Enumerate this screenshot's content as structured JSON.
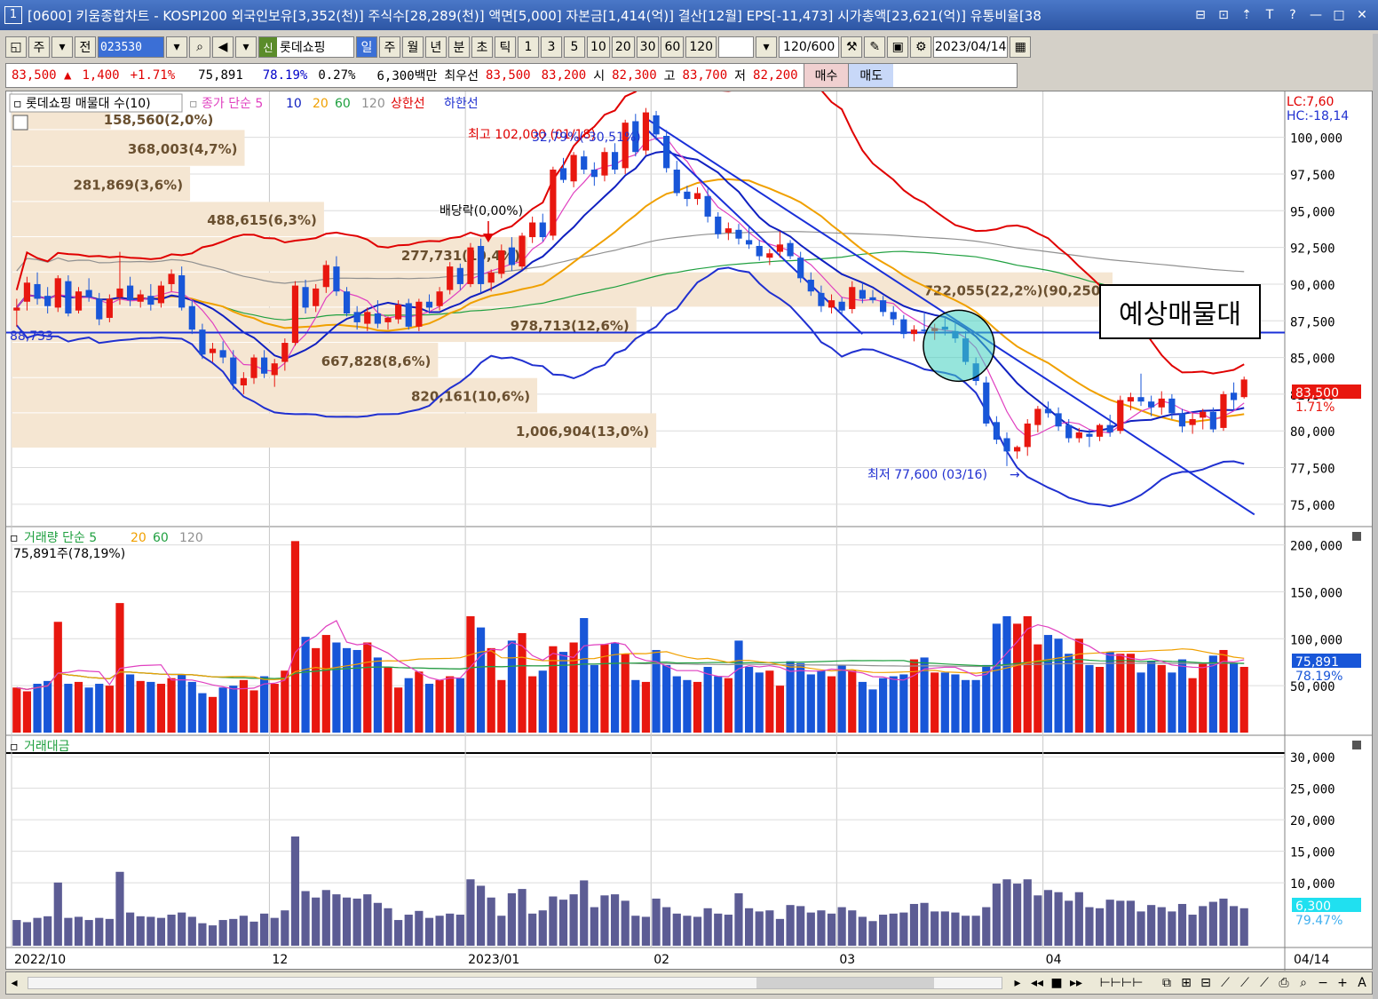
{
  "titlebar": {
    "window_number": "1",
    "title": "[0600] 키움종합차트 - KOSPI200 외국인보유[3,352(천)] 주식수[28,289(천)] 액면[5,000] 자본금[1,414(억)] 결산[12월] EPS[-11,473] 시가총액[23,621(억)] 유통비율[38",
    "buttons": [
      "⊟",
      "⊡",
      "⇡",
      "T",
      "?",
      "—",
      "□",
      "✕"
    ]
  },
  "toolbar": {
    "mode_label": "주",
    "prev_label": "전",
    "code": "023530",
    "stock_tag": "신",
    "stock_name": "롯데쇼핑",
    "periods": [
      "일",
      "주",
      "월",
      "년",
      "분",
      "초",
      "틱"
    ],
    "active_period": "일",
    "intervals": [
      "1",
      "3",
      "5",
      "10",
      "20",
      "30",
      "60",
      "120"
    ],
    "count": "120",
    "total": "/600",
    "date": "2023/04/14"
  },
  "quote": {
    "price": "83,500 ▲",
    "change": "1,400",
    "rate": "+1.71%",
    "volume": "75,891",
    "vol_ratio": "78.19%",
    "turnover": "0.27%",
    "amount": "6,300백만",
    "best_label": "최우선",
    "best_ask": "83,500",
    "best_bid": "83,200",
    "open_label": "시",
    "open": "82,300",
    "high_label": "고",
    "high": "83,700",
    "low_label": "저",
    "low": "82,200",
    "buy": "매수",
    "sell": "매도"
  },
  "price_panel": {
    "legend": {
      "name": "롯데쇼핑 매물대 수(10)",
      "ma_label": "종가 단순 5",
      "ma": [
        "10",
        "20",
        "60",
        "120"
      ],
      "upper": "상한선",
      "lower": "하한선"
    },
    "lc": "LC:7,60",
    "hc": "HC:-18,14",
    "current_price": "83,500",
    "current_rate": "1.71%",
    "high_note": "최고 102,000 (01/18)",
    "low_note": "최저 77,600 (03/16)",
    "dividend_note": "배당락(0,00%)",
    "trend_note": "32,79%(-30,51%)",
    "left_marker": "88,733",
    "annotation": "예상매물대",
    "ticks": [
      {
        "v": 100000,
        "label": "100,000"
      },
      {
        "v": 97500,
        "label": "97,500"
      },
      {
        "v": 95000,
        "label": "95,000"
      },
      {
        "v": 92500,
        "label": "92,500"
      },
      {
        "v": 90000,
        "label": "90,000"
      },
      {
        "v": 87500,
        "label": "87,500"
      },
      {
        "v": 85000,
        "label": "85,000"
      },
      {
        "v": 82500,
        "label": "82,500"
      },
      {
        "v": 80000,
        "label": "80,000"
      },
      {
        "v": 77500,
        "label": "77,500"
      },
      {
        "v": 75000,
        "label": "75,000"
      }
    ],
    "volume_profile": [
      {
        "label": "158,560(2,0%)",
        "pct": 2.0,
        "lo": 100500,
        "hi": 102000
      },
      {
        "label": "368,003(4,7%)",
        "pct": 4.7,
        "lo": 98000,
        "hi": 100500
      },
      {
        "label": "281,869(3,6%)",
        "pct": 3.6,
        "lo": 95600,
        "hi": 98000
      },
      {
        "label": "488,615(6,3%)",
        "pct": 6.3,
        "lo": 93200,
        "hi": 95600
      },
      {
        "label": "277,731(10,4%)",
        "pct": 10.4,
        "lo": 90800,
        "hi": 93200
      },
      {
        "label": "722,055(22,2%)(90,250,",
        "pct": 22.2,
        "lo": 88400,
        "hi": 90800
      },
      {
        "label": "978,713(12,6%)",
        "pct": 12.6,
        "lo": 86000,
        "hi": 88400
      },
      {
        "label": "667,828(8,6%)",
        "pct": 8.6,
        "lo": 83600,
        "hi": 86000
      },
      {
        "label": "820,161(10,6%)",
        "pct": 10.6,
        "lo": 81200,
        "hi": 83600
      },
      {
        "label": "1,006,904(13,0%)",
        "pct": 13.0,
        "lo": 78800,
        "hi": 81200
      }
    ]
  },
  "volume_panel": {
    "legend": "거래량 단순 5",
    "ma": [
      "20",
      "60",
      "120"
    ],
    "current_label": "75,891주(78,19%)",
    "current": "75,891",
    "current_rate": "78.19%",
    "ticks": [
      {
        "v": 200000,
        "label": "200,000"
      },
      {
        "v": 150000,
        "label": "150,000"
      },
      {
        "v": 100000,
        "label": "100,000"
      },
      {
        "v": 50000,
        "label": "50,000"
      }
    ]
  },
  "amount_panel": {
    "legend": "거래대금",
    "current": "6,300",
    "current_rate": "79.47%",
    "ticks": [
      {
        "v": 30000,
        "label": "30,000"
      },
      {
        "v": 25000,
        "label": "25,000"
      },
      {
        "v": 20000,
        "label": "20,000"
      },
      {
        "v": 15000,
        "label": "15,000"
      },
      {
        "v": 10000,
        "label": "10,000"
      }
    ]
  },
  "x_axis": {
    "labels": [
      {
        "i": 0,
        "t": "2022/10"
      },
      {
        "i": 25,
        "t": "12"
      },
      {
        "i": 44,
        "t": "2023/01"
      },
      {
        "i": 62,
        "t": "02"
      },
      {
        "i": 80,
        "t": "03"
      },
      {
        "i": 100,
        "t": "04"
      }
    ],
    "end_label": "04/14"
  },
  "colors": {
    "up": "#e8170f",
    "down": "#1856d8",
    "ma5": "#e040c0",
    "ma10": "#1020c0",
    "ma20": "#f0a000",
    "ma60": "#20a040",
    "ma120": "#909090",
    "upper": "#e00000",
    "lower": "#2030d0",
    "profile": "#f5e6d2",
    "amount": "#5c5c94",
    "support": "#1a30d8",
    "circle": "#40d0c0"
  },
  "chart_data": {
    "type": "candlestick",
    "ohlc": [
      [
        88.2,
        89.0,
        87.1,
        88.4
      ],
      [
        88.8,
        90.5,
        88.2,
        90.1
      ],
      [
        90.0,
        90.8,
        88.6,
        89.0
      ],
      [
        89.2,
        89.8,
        88.0,
        88.5
      ],
      [
        88.4,
        90.6,
        88.1,
        90.4
      ],
      [
        90.2,
        90.6,
        87.8,
        88.0
      ],
      [
        88.2,
        89.8,
        88.0,
        89.5
      ],
      [
        89.6,
        90.4,
        88.8,
        89.1
      ],
      [
        89.0,
        89.4,
        87.2,
        87.6
      ],
      [
        87.7,
        89.3,
        87.4,
        89.0
      ],
      [
        89.1,
        92.2,
        88.6,
        89.7
      ],
      [
        89.9,
        90.5,
        88.5,
        88.9
      ],
      [
        88.8,
        89.6,
        88.4,
        89.3
      ],
      [
        89.2,
        90.0,
        88.2,
        88.6
      ],
      [
        88.7,
        90.2,
        88.4,
        89.9
      ],
      [
        90.0,
        91.0,
        89.5,
        90.7
      ],
      [
        90.6,
        91.2,
        88.2,
        88.4
      ],
      [
        88.5,
        88.9,
        86.6,
        86.9
      ],
      [
        86.9,
        87.3,
        84.9,
        85.2
      ],
      [
        85.3,
        86.0,
        84.7,
        85.6
      ],
      [
        85.5,
        86.1,
        84.6,
        85.0
      ],
      [
        85.0,
        85.5,
        82.8,
        83.2
      ],
      [
        83.1,
        84.0,
        82.5,
        83.6
      ],
      [
        83.6,
        85.2,
        83.2,
        85.0
      ],
      [
        85.0,
        85.5,
        83.6,
        83.9
      ],
      [
        83.8,
        84.9,
        83.0,
        84.6
      ],
      [
        84.7,
        86.3,
        84.1,
        86.0
      ],
      [
        86.0,
        90.2,
        85.8,
        89.9
      ],
      [
        89.8,
        90.3,
        88.0,
        88.4
      ],
      [
        88.5,
        90.0,
        88.1,
        89.7
      ],
      [
        89.8,
        91.6,
        89.4,
        91.3
      ],
      [
        91.2,
        91.9,
        89.2,
        89.5
      ],
      [
        89.5,
        89.8,
        87.8,
        88.0
      ],
      [
        88.1,
        88.5,
        86.9,
        87.4
      ],
      [
        87.3,
        88.4,
        86.8,
        88.1
      ],
      [
        88.0,
        88.9,
        87.0,
        87.3
      ],
      [
        87.4,
        87.8,
        86.9,
        87.7
      ],
      [
        87.6,
        88.9,
        87.3,
        88.6
      ],
      [
        88.7,
        89.0,
        86.9,
        87.1
      ],
      [
        87.1,
        89.0,
        86.8,
        88.8
      ],
      [
        88.8,
        89.3,
        88.0,
        88.4
      ],
      [
        88.5,
        89.8,
        88.2,
        89.5
      ],
      [
        89.6,
        91.5,
        89.3,
        91.2
      ],
      [
        91.1,
        91.4,
        89.6,
        90.0
      ],
      [
        90.0,
        92.8,
        89.8,
        92.5
      ],
      [
        92.6,
        93.1,
        89.4,
        90.0
      ],
      [
        90.1,
        91.0,
        89.5,
        90.8
      ],
      [
        90.7,
        92.7,
        90.4,
        92.3
      ],
      [
        92.5,
        93.2,
        90.9,
        91.3
      ],
      [
        91.2,
        93.5,
        91.0,
        93.3
      ],
      [
        93.2,
        94.6,
        92.8,
        94.2
      ],
      [
        94.2,
        94.8,
        92.9,
        93.2
      ],
      [
        93.3,
        98.0,
        93.0,
        97.8
      ],
      [
        97.9,
        98.6,
        96.9,
        97.1
      ],
      [
        97.0,
        99.0,
        96.6,
        98.8
      ],
      [
        98.7,
        99.1,
        97.5,
        97.8
      ],
      [
        97.8,
        98.3,
        96.7,
        97.3
      ],
      [
        97.4,
        99.3,
        97.0,
        99.0
      ],
      [
        99.0,
        99.6,
        97.5,
        97.8
      ],
      [
        97.9,
        101.2,
        97.5,
        101.0
      ],
      [
        101.1,
        101.6,
        98.7,
        99.0
      ],
      [
        99.1,
        102.0,
        98.8,
        101.7
      ],
      [
        101.5,
        101.8,
        99.8,
        100.2
      ],
      [
        100.1,
        100.5,
        97.6,
        97.9
      ],
      [
        97.8,
        98.4,
        96.0,
        96.2
      ],
      [
        96.3,
        96.7,
        95.3,
        95.8
      ],
      [
        95.8,
        96.6,
        95.4,
        96.2
      ],
      [
        96.0,
        96.5,
        94.2,
        94.6
      ],
      [
        94.6,
        94.9,
        93.1,
        93.4
      ],
      [
        93.5,
        94.2,
        93.0,
        93.8
      ],
      [
        93.7,
        94.1,
        92.7,
        93.1
      ],
      [
        93.0,
        93.9,
        92.4,
        92.7
      ],
      [
        92.6,
        93.0,
        91.6,
        91.9
      ],
      [
        91.8,
        92.4,
        91.3,
        92.1
      ],
      [
        92.2,
        93.6,
        91.8,
        92.7
      ],
      [
        92.8,
        93.0,
        91.7,
        91.9
      ],
      [
        91.8,
        92.2,
        90.1,
        90.4
      ],
      [
        90.3,
        90.8,
        89.2,
        89.5
      ],
      [
        89.4,
        89.9,
        88.1,
        88.5
      ],
      [
        88.4,
        89.3,
        88.0,
        88.9
      ],
      [
        88.8,
        89.1,
        87.9,
        88.2
      ],
      [
        88.3,
        90.2,
        88.0,
        89.8
      ],
      [
        89.6,
        90.1,
        88.7,
        89.0
      ],
      [
        89.1,
        89.6,
        88.7,
        88.9
      ],
      [
        88.9,
        89.2,
        87.8,
        88.1
      ],
      [
        88.1,
        88.5,
        87.2,
        87.6
      ],
      [
        87.6,
        87.9,
        86.3,
        86.6
      ],
      [
        86.6,
        87.2,
        86.1,
        86.9
      ],
      [
        86.9,
        88.0,
        86.6,
        86.8
      ],
      [
        86.8,
        87.3,
        86.2,
        87.0
      ],
      [
        87.1,
        87.8,
        86.5,
        86.9
      ],
      [
        86.8,
        87.5,
        86.0,
        86.3
      ],
      [
        86.3,
        86.8,
        84.5,
        84.7
      ],
      [
        84.6,
        85.0,
        83.1,
        83.4
      ],
      [
        83.3,
        83.7,
        80.3,
        80.5
      ],
      [
        80.6,
        81.0,
        79.1,
        79.4
      ],
      [
        79.5,
        79.9,
        77.6,
        78.6
      ],
      [
        78.6,
        79.0,
        78.1,
        78.9
      ],
      [
        78.9,
        80.8,
        78.3,
        80.5
      ],
      [
        80.4,
        81.7,
        79.9,
        81.5
      ],
      [
        81.5,
        82.0,
        80.9,
        81.2
      ],
      [
        81.2,
        81.6,
        80.0,
        80.3
      ],
      [
        80.4,
        80.8,
        79.2,
        79.5
      ],
      [
        79.5,
        80.2,
        79.2,
        79.9
      ],
      [
        79.8,
        80.1,
        78.9,
        79.6
      ],
      [
        79.6,
        80.5,
        79.3,
        80.4
      ],
      [
        80.4,
        81.1,
        79.6,
        79.9
      ],
      [
        80.0,
        82.4,
        79.8,
        82.1
      ],
      [
        82.0,
        82.6,
        81.4,
        82.3
      ],
      [
        82.3,
        83.9,
        81.7,
        82.0
      ],
      [
        82.0,
        82.4,
        81.0,
        81.6
      ],
      [
        81.6,
        82.7,
        81.1,
        82.2
      ],
      [
        82.2,
        82.5,
        80.8,
        81.2
      ],
      [
        81.2,
        81.5,
        79.9,
        80.3
      ],
      [
        80.4,
        81.2,
        79.8,
        80.8
      ],
      [
        80.9,
        81.5,
        80.1,
        81.3
      ],
      [
        81.3,
        81.6,
        79.9,
        80.1
      ],
      [
        80.2,
        82.7,
        80.0,
        82.5
      ],
      [
        82.6,
        83.3,
        81.4,
        82.1
      ],
      [
        82.3,
        83.7,
        82.2,
        83.5
      ]
    ],
    "volume": [
      48,
      44,
      52,
      55,
      118,
      52,
      54,
      48,
      52,
      50,
      138,
      62,
      55,
      54,
      52,
      58,
      62,
      54,
      42,
      38,
      48,
      50,
      56,
      45,
      60,
      52,
      66,
      204,
      102,
      90,
      104,
      96,
      90,
      88,
      96,
      80,
      70,
      48,
      58,
      65,
      52,
      56,
      60,
      58,
      124,
      112,
      90,
      56,
      98,
      106,
      60,
      66,
      92,
      86,
      96,
      122,
      72,
      94,
      96,
      84,
      56,
      54,
      88,
      72,
      60,
      56,
      54,
      70,
      60,
      58,
      98,
      70,
      64,
      66,
      50,
      76,
      74,
      62,
      66,
      60,
      72,
      66,
      54,
      46,
      58,
      60,
      62,
      78,
      80,
      64,
      64,
      62,
      56,
      56,
      72,
      116,
      124,
      116,
      124,
      94,
      104,
      100,
      84,
      100,
      72,
      70,
      86,
      84,
      84,
      64,
      76,
      72,
      64,
      78,
      58,
      74,
      82,
      88,
      74,
      70,
      72,
      96,
      86,
      66,
      74,
      88,
      98,
      78
    ]
  }
}
